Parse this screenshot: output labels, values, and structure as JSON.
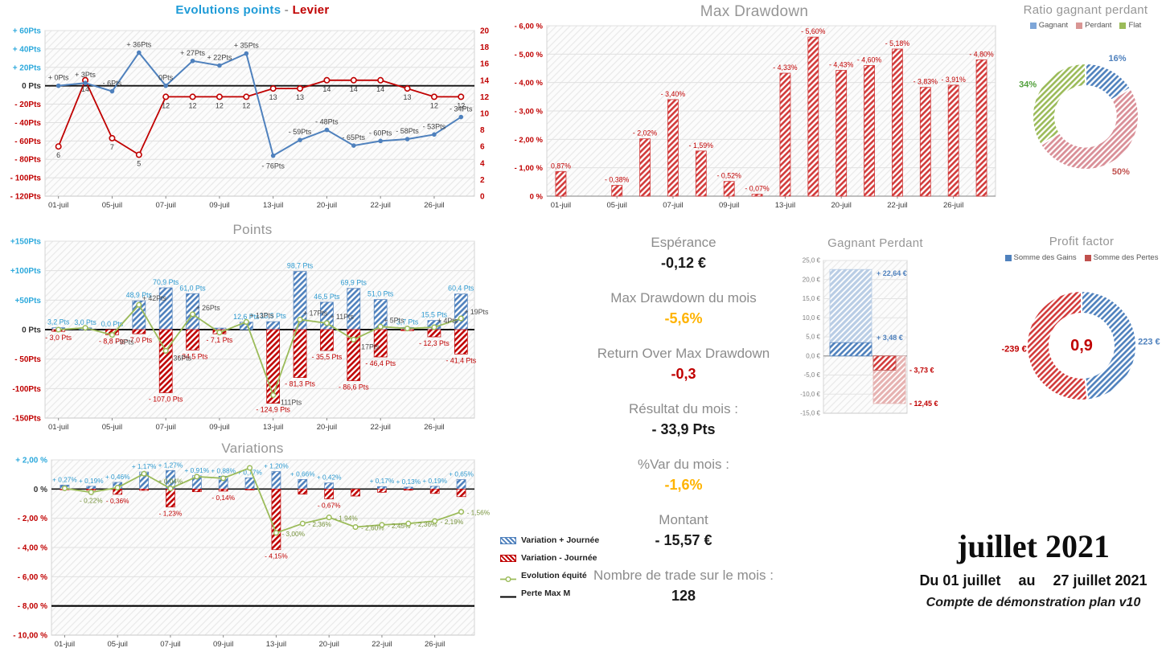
{
  "colors": {
    "axis_cyan": "#2DA9DC",
    "axis_red": "#C00000",
    "blue_line": "#4F81BD",
    "red_line": "#C00000",
    "bright_red": "#D23B3B",
    "green": "#9BBB59",
    "olive": "#77933C",
    "label_blue": "#2E9AD0",
    "label_dark": "#404040",
    "title_gray": "#969696",
    "orange": "#FFB300"
  },
  "dates": [
    "01-juil",
    "05-juil",
    "07-juil",
    "09-juil",
    "13-juil",
    "20-juil",
    "22-juil",
    "26-juil"
  ],
  "chart_data": [
    {
      "id": "evolutions",
      "type": "line",
      "title": {
        "left": "Evolutions points",
        "sep": " - ",
        "right": "Levier"
      },
      "y_left": {
        "min": -120,
        "max": 60,
        "step": 20,
        "ticks": [
          "+ 60Pts",
          "+ 40Pts",
          "+ 20Pts",
          "0 Pts",
          "- 20Pts",
          "- 40Pts",
          "- 60Pts",
          "- 80Pts",
          "- 100Pts",
          "- 120Pts"
        ]
      },
      "y_right": {
        "min": 0,
        "max": 20,
        "step": 2,
        "ticks": [
          "20",
          "18",
          "16",
          "14",
          "12",
          "10",
          "8",
          "6",
          "4",
          "2",
          "0"
        ]
      },
      "series": [
        {
          "name": "Evolutions points",
          "values": [
            0,
            3,
            -6,
            36,
            0,
            27,
            22,
            35,
            -76,
            -59,
            -48,
            -65,
            -60,
            -58,
            -53,
            -34
          ],
          "labels": [
            "+ 0Pts",
            "+ 3Pts",
            "- 6Pts",
            "+ 36Pts",
            "0Pts",
            "+ 27Pts",
            "+ 22Pts",
            "+ 35Pts",
            "- 76Pts",
            "- 59Pts",
            "- 48Pts",
            "- 65Pts",
            "- 60Pts",
            "- 58Pts",
            "- 53Pts",
            "- 34Pts"
          ]
        },
        {
          "name": "Levier",
          "values": [
            6,
            14,
            7,
            5,
            12,
            12,
            12,
            12,
            13,
            13,
            14,
            14,
            14,
            13,
            12,
            12
          ],
          "labels": [
            "6",
            "14",
            "7",
            "5",
            "12",
            "12",
            "12",
            "12",
            "13",
            "13",
            "14",
            "14",
            "14",
            "13",
            "12",
            "12"
          ]
        }
      ]
    },
    {
      "id": "max_drawdown",
      "type": "bar",
      "title": "Max Drawdown",
      "ylim": [
        0,
        6
      ],
      "y_ticks": [
        "- 6,00 %",
        "- 5,00 %",
        "- 4,00 %",
        "- 3,00 %",
        "- 2,00 %",
        "- 1,00 %",
        "0 %"
      ],
      "values": [
        0.87,
        0,
        0.38,
        2.02,
        3.4,
        1.59,
        0.52,
        0.07,
        4.33,
        5.6,
        4.43,
        4.6,
        5.18,
        3.83,
        3.91,
        4.8
      ],
      "labels": [
        "0,87%",
        "",
        "- 0,38%",
        "- 2,02%",
        "- 3,40%",
        "- 1,59%",
        "- 0,52%",
        "- 0,07%",
        "- 4,33%",
        "- 5,60%",
        "- 4,43%",
        "- 4,60%",
        "- 5,18%",
        "- 3,83%",
        "- 3,91%",
        "- 4,80%"
      ]
    },
    {
      "id": "ratio",
      "type": "pie",
      "title": "Ratio gagnant perdant",
      "legend": [
        "Gagnant",
        "Perdant",
        "Flat"
      ],
      "slices": [
        {
          "name": "Gagnant",
          "pct": 16,
          "label": "16%"
        },
        {
          "name": "Perdant",
          "pct": 50,
          "label": "50%"
        },
        {
          "name": "Flat",
          "pct": 34,
          "label": "34%"
        }
      ]
    },
    {
      "id": "points",
      "type": "bar-line",
      "title": "Points",
      "ylim": [
        -150,
        150
      ],
      "y_ticks": [
        "+150Pts",
        "+100Pts",
        "+50Pts",
        "0 Pts",
        "- 50Pts",
        "-100Pts",
        "-150Pts"
      ],
      "series": [
        {
          "name": "gains-journee",
          "values": [
            3.2,
            3.0,
            0.0,
            48.9,
            70.9,
            61.0,
            2.6,
            12.6,
            13.5,
            98.7,
            46.5,
            69.9,
            51.0,
            3.7,
            15.5,
            60.4
          ],
          "labels": [
            "3,2 Pts",
            "3,0 Pts",
            "0,0 Pts",
            "48,9 Pts",
            "70,9 Pts",
            "61,0 Pts",
            "",
            "12,6 Pts",
            "13,5 Pts",
            "98,7 Pts",
            "46,5 Pts",
            "69,9 Pts",
            "51,0 Pts",
            "3,7 Pts",
            "15,5 Pts",
            "60,4 Pts"
          ]
        },
        {
          "name": "pertes-journee",
          "values": [
            -3.0,
            0,
            -8.8,
            -7.0,
            -107.0,
            -34.5,
            -7.1,
            0,
            -124.9,
            -81.3,
            -35.5,
            -86.6,
            -46.4,
            -1.7,
            -12.3,
            -41.4
          ],
          "labels": [
            "- 3,0 Pts",
            "",
            "- 8,8 Pts",
            "- 7,0 Pts",
            "- 107,0 Pts",
            "- 34,5 Pts",
            "- 7,1 Pts",
            "",
            "- 124,9 Pts",
            "- 81,3 Pts",
            "- 35,5 Pts",
            "- 86,6 Pts",
            "- 46,4 Pts",
            "",
            "- 12,3 Pts",
            "- 41,4 Pts"
          ]
        },
        {
          "name": "net-journee",
          "values": [
            0,
            3,
            -9,
            42,
            -36,
            26,
            -5,
            13,
            -111,
            17,
            11,
            -17,
            5,
            2,
            4,
            19
          ],
          "labels": [
            "",
            "",
            "- 9Pts",
            "+ 42Pts",
            "- 36Pts",
            "+ 26Pts",
            "",
            "+ 13Pts",
            "- 111Pts",
            "+ 17Pts",
            "+ 11Pts",
            "- 17Pts",
            "+ 5Pts",
            "",
            "+ 4Pts",
            "+ 19Pts"
          ]
        }
      ]
    },
    {
      "id": "variations",
      "type": "bar-line",
      "title": "Variations",
      "ylim": [
        -10,
        2
      ],
      "y_ticks": [
        "+ 2,00 %",
        "0 %",
        "- 2,00 %",
        "- 4,00 %",
        "- 6,00 %",
        "- 8,00 %",
        "- 10,00 %"
      ],
      "max_loss_line": -8,
      "series": [
        {
          "name": "variation-plus",
          "values": [
            0.27,
            0.19,
            0.46,
            1.17,
            1.27,
            0.91,
            0.88,
            0.77,
            1.2,
            0.66,
            0.42,
            0,
            0.17,
            0.13,
            0.19,
            0.65
          ],
          "labels": [
            "+ 0,27%",
            "+ 0,19%",
            "+ 0,46%",
            "+ 1,17%",
            "+ 1,27%",
            "+ 0,91%",
            "+ 0,88%",
            "+ 0,77%",
            "+ 1,20%",
            "+ 0,66%",
            "+ 0,42%",
            "",
            "+ 0,17%",
            "+ 0,13%",
            "+ 0,19%",
            "+ 0,65%"
          ]
        },
        {
          "name": "variation-moins",
          "values": [
            -0.05,
            -0.08,
            -0.36,
            -0.09,
            -1.23,
            -0.18,
            -0.14,
            -0.06,
            -4.15,
            -0.35,
            -0.67,
            -0.48,
            -0.22,
            -0.08,
            -0.3,
            -0.52
          ],
          "labels": [
            "",
            "",
            "- 0,36%",
            "",
            "- 1,23%",
            "",
            "- 0,14%",
            "",
            "- 4,15%",
            "",
            "- 0,67%",
            "",
            "",
            "",
            "",
            ""
          ]
        },
        {
          "name": "evolution-equite",
          "values": [
            0.05,
            -0.22,
            0.1,
            1.05,
            0.04,
            0.85,
            0.74,
            1.45,
            -3.0,
            -2.36,
            -1.94,
            -2.6,
            -2.45,
            -2.36,
            -2.19,
            -1.56
          ],
          "labels": [
            "",
            "- 0,22%",
            "",
            "",
            "+ 0,04%",
            "",
            "",
            "",
            "- 3,00%",
            "- 2,36%",
            "- 1,94%",
            "- 2,60%",
            "- 2,45%",
            "- 2,36%",
            "- 2,19%",
            "- 1,56%"
          ]
        }
      ]
    },
    {
      "id": "gagnant_perdant",
      "type": "bar",
      "title": "Gagnant Perdant",
      "ylim": [
        -15,
        25
      ],
      "y_ticks": [
        "25,0 €",
        "20,0 €",
        "15,0 €",
        "10,0 €",
        "5,0 €",
        "0,0 €",
        "-5,0 €",
        "-10,0 €",
        "-15,0 €"
      ],
      "bars": [
        {
          "value": 22.64,
          "label": "+ 22,64 €",
          "style": "light-blue"
        },
        {
          "value": 3.48,
          "label": "+ 3,48 €",
          "style": "blue"
        },
        {
          "value": -3.73,
          "label": "- 3,73 €",
          "style": "red"
        },
        {
          "value": -12.45,
          "label": "- 12,45 €",
          "style": "light-red"
        }
      ]
    },
    {
      "id": "profit_factor",
      "type": "pie",
      "title": "Profit factor",
      "legend": [
        "Somme des Gains",
        "Somme des Pertes"
      ],
      "center": "0,9",
      "slices": [
        {
          "name": "Somme des Gains",
          "value": 223,
          "label": "223 €"
        },
        {
          "name": "Somme des Pertes",
          "value": 239,
          "label": "-239 €"
        }
      ]
    }
  ],
  "stats": {
    "items": [
      {
        "label": "Espérance",
        "value": "-0,12 €",
        "color": "dark"
      },
      {
        "label": "Max Drawdown du mois",
        "value": "-5,6%",
        "color": "orange"
      },
      {
        "label": "Return Over Max Drawdown",
        "value": "-0,3",
        "color": "red"
      },
      {
        "label": "Résultat du mois :",
        "value": "- 33,9 Pts",
        "color": "dark"
      },
      {
        "label": "%Var du mois :",
        "value": "-1,6%",
        "color": "orange"
      },
      {
        "label": "Montant",
        "value": "- 15,57 €",
        "color": "dark"
      },
      {
        "label": "Nombre de trade sur le mois :",
        "value": "128",
        "color": "dark"
      }
    ]
  },
  "variations_legend": {
    "items": [
      {
        "label": "Variation + Journée",
        "swatch": "blue-hatch"
      },
      {
        "label": "Variation - Journée",
        "swatch": "red-hatch"
      },
      {
        "label": "Evolution équité",
        "swatch": "green-line"
      },
      {
        "label": "Perte Max M",
        "swatch": "black-line"
      }
    ]
  },
  "footer": {
    "month": "juillet 2021",
    "period_left": "Du 01 juillet",
    "period_mid": "au",
    "period_right": "27 juillet 2021",
    "account": "Compte de démonstration plan v10"
  }
}
